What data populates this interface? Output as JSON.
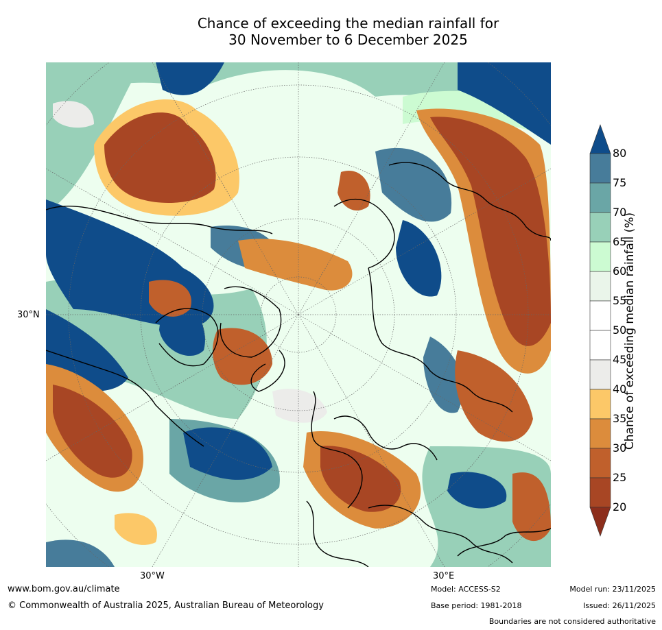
{
  "title": {
    "line1": "Chance of exceeding the median rainfall for",
    "line2": "30 November to 6 December 2025"
  },
  "axes": {
    "lat_label": "30°N",
    "lon_west": "30°W",
    "lon_east": "30°E"
  },
  "colorbar": {
    "label": "Chance of exceeding median rainfall (%)",
    "ticks": [
      "80",
      "75",
      "70",
      "65",
      "60",
      "55",
      "50",
      "45",
      "40",
      "35",
      "30",
      "25",
      "20"
    ],
    "colors": [
      "#0f4c8a",
      "#477c9a",
      "#6aa6a6",
      "#98d0b8",
      "#ccfbd2",
      "#eaf5ea",
      "#ffffff",
      "#ffffff",
      "#ececea",
      "#fcc868",
      "#dc8c3c",
      "#c0602c",
      "#a84624",
      "#8c2e1c"
    ]
  },
  "footer": {
    "website": "www.bom.gov.au/climate",
    "copyright": "© Commonwealth of Australia 2025, Australian Bureau of Meteorology",
    "model": "Model: ACCESS-S2",
    "base_period": "Base period: 1981-2018",
    "model_run": "Model run: 23/11/2025",
    "issued": "Issued: 26/11/2025",
    "disclaimer": "Boundaries are not considered authoritative"
  }
}
